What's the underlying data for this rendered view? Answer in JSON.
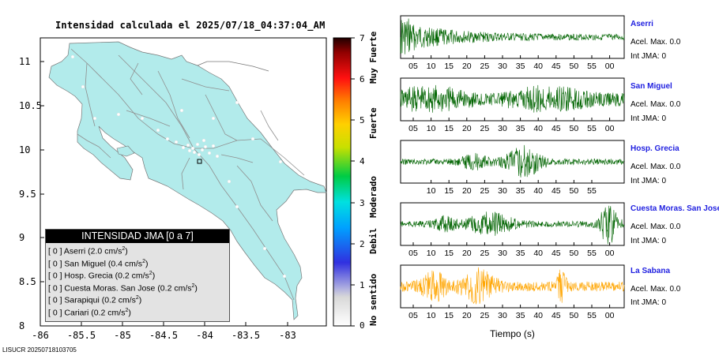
{
  "map": {
    "title": "Intensidad calculada el 2025/07/18_04:37:04_AM",
    "lat_ticks": [
      "11",
      "10.5",
      "10",
      "9.5",
      "9",
      "8.5",
      "8"
    ],
    "lon_ticks": [
      "-86",
      "-85.5",
      "-85",
      "-84.5",
      "-84",
      "-83.5",
      "-83"
    ],
    "colors": {
      "land": "#b2ebeb",
      "road": "#8f8f8f",
      "sea": "#ffffff"
    }
  },
  "legend": {
    "title": "INTENSIDAD JMA [0 a 7]",
    "unit": "cm/s",
    "unit_exp": "2",
    "entries": [
      {
        "jma": "[ 0 ]",
        "name": "Aserri",
        "accel": "2.0"
      },
      {
        "jma": "[ 0 ]",
        "name": "San Miguel",
        "accel": "0.4"
      },
      {
        "jma": "[ 0 ]",
        "name": "Hosp. Grecia",
        "accel": "0.2"
      },
      {
        "jma": "[ 0 ]",
        "name": "Cuesta Moras. San Jose",
        "accel": "0.2"
      },
      {
        "jma": "[ 0 ]",
        "name": "Sarapiqui",
        "accel": "0.2"
      },
      {
        "jma": "[ 0 ]",
        "name": "Cariari",
        "accel": "0.2"
      }
    ]
  },
  "colorbar": {
    "labels": [
      "7",
      "6",
      "5",
      "4",
      "3",
      "2",
      "1",
      "0"
    ],
    "words": [
      "Muy Fuerte",
      "Fuerte",
      "Moderado",
      "Debil",
      "No sentido"
    ]
  },
  "stations": [
    {
      "name": "Aserri",
      "accel_label": "Acel. Max. 0.0",
      "jma_label": "Int JMA: 0",
      "color": "#006400",
      "ticks": [
        "05",
        "10",
        "15",
        "20",
        "25",
        "30",
        "35",
        "40",
        "45",
        "50",
        "55",
        "00"
      ]
    },
    {
      "name": "San Miguel",
      "accel_label": "Acel. Max. 0.0",
      "jma_label": "Int JMA: 0",
      "color": "#006400",
      "ticks": [
        "05",
        "10",
        "15",
        "20",
        "25",
        "30",
        "35",
        "40",
        "45",
        "50",
        "55",
        "00"
      ]
    },
    {
      "name": "Hosp. Grecia",
      "accel_label": "Acel. Max. 0.0",
      "jma_label": "Int JMA: 0",
      "color": "#006400",
      "ticks": [
        "10",
        "15",
        "20",
        "25",
        "30",
        "35",
        "40",
        "45",
        "50",
        "55"
      ]
    },
    {
      "name": "Cuesta Moras. San Jose",
      "accel_label": "Acel. Max. 0.0",
      "jma_label": "Int JMA: 0",
      "color": "#006400",
      "ticks": [
        "05",
        "10",
        "15",
        "20",
        "25",
        "30",
        "35",
        "40",
        "45",
        "50",
        "55",
        "00"
      ]
    },
    {
      "name": "La Sabana",
      "accel_label": "Acel. Max. 0.0",
      "jma_label": "Int JMA: 0",
      "color": "#ffa500",
      "ticks": [
        "05",
        "10",
        "15",
        "20",
        "25",
        "30",
        "35",
        "40",
        "45",
        "50",
        "55",
        "00"
      ]
    }
  ],
  "x_label": "Tiempo (s)",
  "footer": "LISUCR 20250718103705"
}
